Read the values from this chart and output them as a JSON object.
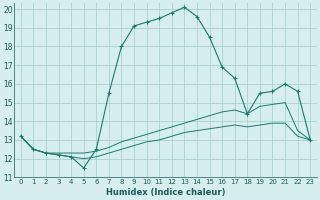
{
  "xlabel": "Humidex (Indice chaleur)",
  "bg_color": "#d6eef0",
  "grid_color": "#aacfcf",
  "line_color": "#1a7a6e",
  "xlim": [
    -0.5,
    23.5
  ],
  "ylim": [
    11,
    20.3
  ],
  "yticks": [
    11,
    12,
    13,
    14,
    15,
    16,
    17,
    18,
    19,
    20
  ],
  "xticks": [
    0,
    1,
    2,
    3,
    4,
    5,
    6,
    7,
    8,
    9,
    10,
    11,
    12,
    13,
    14,
    15,
    16,
    17,
    18,
    19,
    20,
    21,
    22,
    23
  ],
  "series1_x": [
    0,
    1,
    2,
    3,
    4,
    5,
    6,
    7,
    8,
    9,
    10,
    11,
    12,
    13,
    14,
    15,
    16,
    17,
    18,
    19,
    20,
    21,
    22,
    23
  ],
  "series1_y": [
    13.2,
    12.5,
    12.3,
    12.2,
    12.1,
    11.5,
    12.5,
    15.5,
    18.0,
    19.1,
    19.3,
    19.5,
    19.8,
    20.1,
    19.6,
    18.5,
    16.9,
    16.3,
    14.4,
    15.5,
    15.6,
    16.0,
    15.6,
    13.0
  ],
  "series2_x": [
    0,
    1,
    2,
    3,
    4,
    5,
    6,
    7,
    8,
    9,
    10,
    11,
    12,
    13,
    14,
    15,
    16,
    17,
    18,
    19,
    20,
    21,
    22,
    23
  ],
  "series2_y": [
    13.2,
    12.5,
    12.3,
    12.3,
    12.3,
    12.3,
    12.4,
    12.6,
    12.9,
    13.1,
    13.3,
    13.5,
    13.7,
    13.9,
    14.1,
    14.3,
    14.5,
    14.6,
    14.4,
    14.8,
    14.9,
    15.0,
    13.5,
    13.0
  ],
  "series3_x": [
    0,
    1,
    2,
    3,
    4,
    5,
    6,
    7,
    8,
    9,
    10,
    11,
    12,
    13,
    14,
    15,
    16,
    17,
    18,
    19,
    20,
    21,
    22,
    23
  ],
  "series3_y": [
    13.2,
    12.5,
    12.3,
    12.2,
    12.1,
    12.0,
    12.1,
    12.3,
    12.5,
    12.7,
    12.9,
    13.0,
    13.2,
    13.4,
    13.5,
    13.6,
    13.7,
    13.8,
    13.7,
    13.8,
    13.9,
    13.9,
    13.2,
    13.0
  ]
}
